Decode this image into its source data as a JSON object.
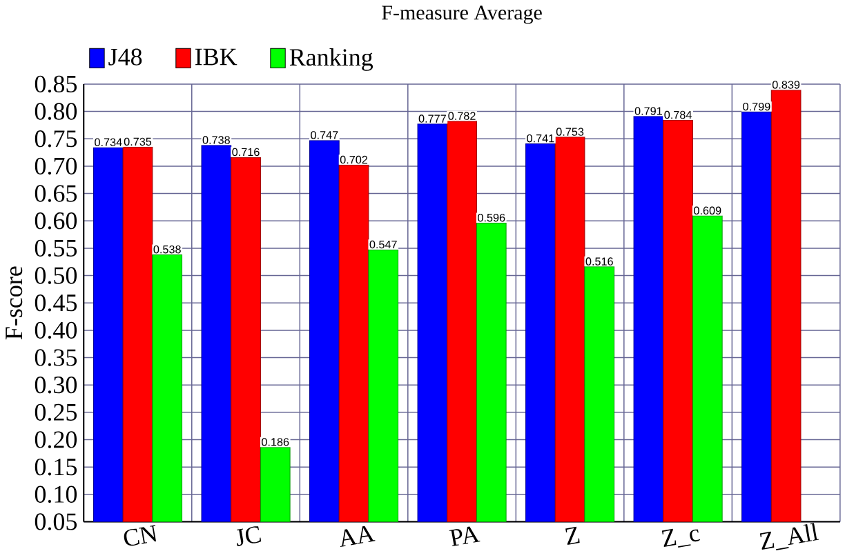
{
  "chart_data": {
    "type": "bar",
    "title": "F-measure Average",
    "ylabel": "F-score",
    "categories": [
      "CN",
      "JC",
      "AA",
      "PA",
      "Z",
      "Z_c",
      "Z_All"
    ],
    "series": [
      {
        "name": "J48",
        "color": "#0000ff",
        "values": [
          0.734,
          0.738,
          0.747,
          0.777,
          0.741,
          0.791,
          0.799
        ]
      },
      {
        "name": "IBK",
        "color": "#ff0000",
        "values": [
          0.735,
          0.716,
          0.702,
          0.782,
          0.753,
          0.784,
          0.839
        ]
      },
      {
        "name": "Ranking",
        "color": "#00ff00",
        "values": [
          0.538,
          0.186,
          0.547,
          0.596,
          0.516,
          0.609,
          null
        ]
      }
    ],
    "ylim": [
      0.05,
      0.85
    ],
    "yticks": [
      {
        "value": 0.05,
        "label": "0.05"
      },
      {
        "value": 0.1,
        "label": "0.10"
      },
      {
        "value": 0.15,
        "label": "0.15"
      },
      {
        "value": 0.2,
        "label": "0.20"
      },
      {
        "value": 0.25,
        "label": "0.25"
      },
      {
        "value": 0.3,
        "label": "0.30"
      },
      {
        "value": 0.35,
        "label": "0.35"
      },
      {
        "value": 0.4,
        "label": "0.40"
      },
      {
        "value": 0.45,
        "label": "0.45"
      },
      {
        "value": 0.5,
        "label": "0.50"
      },
      {
        "value": 0.55,
        "label": "0.55"
      },
      {
        "value": 0.6,
        "label": "0.60"
      },
      {
        "value": 0.65,
        "label": "0.65"
      },
      {
        "value": 0.7,
        "label": "0.70"
      },
      {
        "value": 0.75,
        "label": "0.75"
      },
      {
        "value": 0.8,
        "label": "0.80"
      },
      {
        "value": 0.85,
        "label": "0.85"
      }
    ],
    "grid": true,
    "legend": "top left",
    "data_labels": true
  }
}
